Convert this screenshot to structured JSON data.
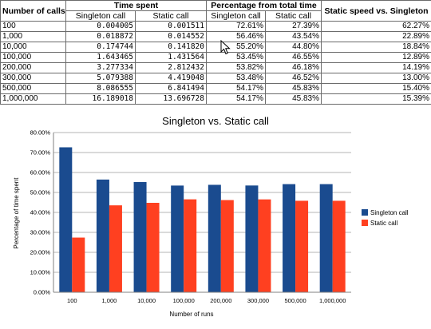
{
  "table": {
    "headers": {
      "calls": "Number of calls",
      "time_spent": "Time spent",
      "percentage": "Percentage from total time",
      "speed": "Static speed vs. Singleton",
      "singleton": "Singleton call",
      "static": "Static call",
      "singleton_pct": "Singleton call",
      "static_pct": "Static call"
    },
    "rows": [
      {
        "calls": "100",
        "singleton_time": "0.004005",
        "static_time": "0.001511",
        "singleton_pct": "72.61%",
        "static_pct": "27.39%",
        "speed": "62.27%"
      },
      {
        "calls": "1,000",
        "singleton_time": "0.018872",
        "static_time": "0.014552",
        "singleton_pct": "56.46%",
        "static_pct": "43.54%",
        "speed": "22.89%"
      },
      {
        "calls": "10,000",
        "singleton_time": "0.174744",
        "static_time": "0.141820",
        "singleton_pct": "55.20%",
        "static_pct": "44.80%",
        "speed": "18.84%"
      },
      {
        "calls": "100,000",
        "singleton_time": "1.643465",
        "static_time": "1.431564",
        "singleton_pct": "53.45%",
        "static_pct": "46.55%",
        "speed": "12.89%"
      },
      {
        "calls": "200,000",
        "singleton_time": "3.277334",
        "static_time": "2.812432",
        "singleton_pct": "53.82%",
        "static_pct": "46.18%",
        "speed": "14.19%"
      },
      {
        "calls": "300,000",
        "singleton_time": "5.079388",
        "static_time": "4.419048",
        "singleton_pct": "53.48%",
        "static_pct": "46.52%",
        "speed": "13.00%"
      },
      {
        "calls": "500,000",
        "singleton_time": "8.086555",
        "static_time": "6.841494",
        "singleton_pct": "54.17%",
        "static_pct": "45.83%",
        "speed": "15.40%"
      },
      {
        "calls": "1,000,000",
        "singleton_time": "16.189018",
        "static_time": "13.696728",
        "singleton_pct": "54.17%",
        "static_pct": "45.83%",
        "speed": "15.39%"
      }
    ]
  },
  "colors": {
    "singleton": "#1a4b8f",
    "static": "#ff4020",
    "grid": "#b4b4b4"
  },
  "chart_data": {
    "type": "bar",
    "title": "Singleton vs. Static call",
    "xlabel": "Number of runs",
    "ylabel": "Percentage of time spent",
    "categories": [
      "100",
      "1,000",
      "10,000",
      "100,000",
      "200,000",
      "300,000",
      "500,000",
      "1,000,000"
    ],
    "series": [
      {
        "name": "Singleton call",
        "values": [
          72.61,
          56.46,
          55.2,
          53.45,
          53.82,
          53.48,
          54.17,
          54.17
        ]
      },
      {
        "name": "Static call",
        "values": [
          27.39,
          43.54,
          44.8,
          46.55,
          46.18,
          46.52,
          45.83,
          45.83
        ]
      }
    ],
    "ylim": [
      0,
      80
    ],
    "yticks": [
      0,
      10,
      20,
      30,
      40,
      50,
      60,
      70,
      80
    ],
    "ytick_labels": [
      "0.00%",
      "10.00%",
      "20.00%",
      "30.00%",
      "40.00%",
      "50.00%",
      "60.00%",
      "70.00%",
      "80.00%"
    ],
    "grid": true,
    "legend_position": "right"
  }
}
